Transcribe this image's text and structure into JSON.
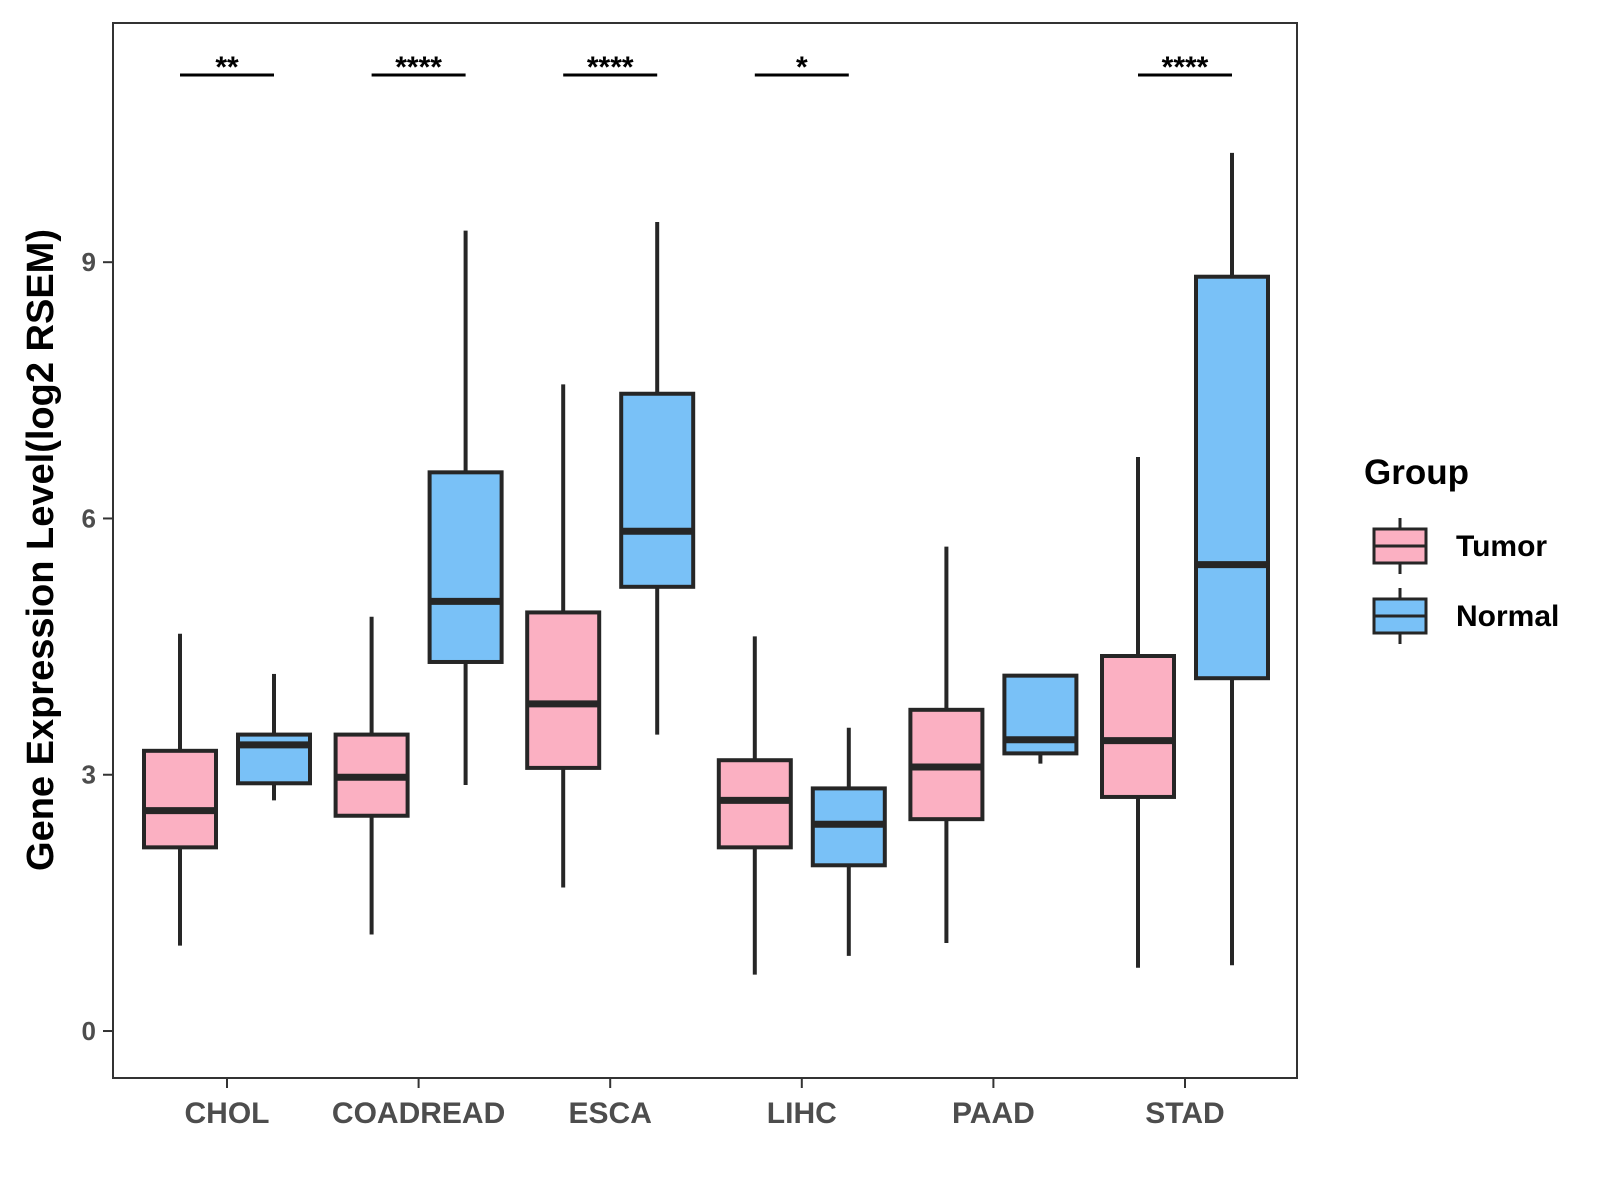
{
  "chart_data": {
    "type": "boxplot",
    "ylabel": "Gene Expression Level(log2 RSEM)",
    "xlabel": "",
    "ylim": [
      -0.55,
      11.8
    ],
    "yticks": [
      0,
      3,
      6,
      9
    ],
    "categories": [
      "CHOL",
      "COADREAD",
      "ESCA",
      "LIHC",
      "PAAD",
      "STAD"
    ],
    "legend": {
      "title": "Group",
      "position": "right",
      "entries": [
        {
          "name": "Tumor",
          "color": "#FBB0C2"
        },
        {
          "name": "Normal",
          "color": "#79C1F7"
        }
      ]
    },
    "series": [
      {
        "name": "Tumor",
        "color": "#FBB0C2",
        "boxes": [
          {
            "whisker_low": 1.0,
            "q1": 2.15,
            "median": 2.58,
            "q3": 3.28,
            "whisker_high": 4.65
          },
          {
            "whisker_low": 1.13,
            "q1": 2.52,
            "median": 2.97,
            "q3": 3.47,
            "whisker_high": 4.85
          },
          {
            "whisker_low": 1.68,
            "q1": 3.08,
            "median": 3.83,
            "q3": 4.9,
            "whisker_high": 7.57
          },
          {
            "whisker_low": 0.66,
            "q1": 2.15,
            "median": 2.7,
            "q3": 3.17,
            "whisker_high": 4.62
          },
          {
            "whisker_low": 1.03,
            "q1": 2.48,
            "median": 3.09,
            "q3": 3.76,
            "whisker_high": 5.67
          },
          {
            "whisker_low": 0.74,
            "q1": 2.74,
            "median": 3.4,
            "q3": 4.39,
            "whisker_high": 6.72
          }
        ]
      },
      {
        "name": "Normal",
        "color": "#79C1F7",
        "boxes": [
          {
            "whisker_low": 2.7,
            "q1": 2.9,
            "median": 3.35,
            "q3": 3.47,
            "whisker_high": 4.18
          },
          {
            "whisker_low": 2.88,
            "q1": 4.32,
            "median": 5.03,
            "q3": 6.54,
            "whisker_high": 9.37
          },
          {
            "whisker_low": 3.47,
            "q1": 5.2,
            "median": 5.85,
            "q3": 7.46,
            "whisker_high": 9.47
          },
          {
            "whisker_low": 0.88,
            "q1": 1.94,
            "median": 2.42,
            "q3": 2.84,
            "whisker_high": 3.55
          },
          {
            "whisker_low": 3.13,
            "q1": 3.25,
            "median": 3.41,
            "q3": 4.16,
            "whisker_high": 4.16
          },
          {
            "whisker_low": 0.77,
            "q1": 4.13,
            "median": 5.46,
            "q3": 8.83,
            "whisker_high": 10.28
          }
        ]
      }
    ],
    "significance": [
      "**",
      "****",
      "****",
      "*",
      "",
      "****"
    ]
  }
}
